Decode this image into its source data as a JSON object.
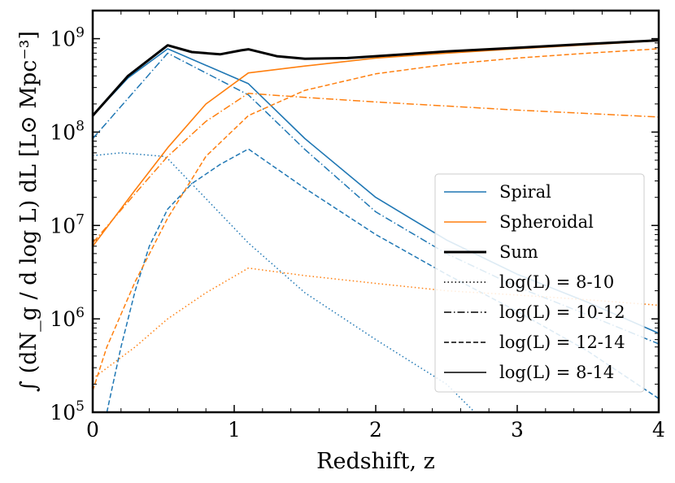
{
  "chart_data": {
    "type": "line",
    "title": "",
    "xlabel": "Redshift, z",
    "ylabel": "∫ (dN_g / d log L) dL [L⊙ Mpc⁻³]",
    "y_scale": "log",
    "xlim": [
      0,
      4
    ],
    "ylim": [
      100000,
      2000000000
    ],
    "x_ticks": [
      0,
      1,
      2,
      3,
      4
    ],
    "x_tick_labels": [
      "0",
      "1",
      "2",
      "3",
      "4"
    ],
    "y_ticks": [
      100000,
      1000000,
      10000000,
      100000000,
      1000000000
    ],
    "y_tick_labels": [
      "10",
      "10",
      "10",
      "10",
      "10"
    ],
    "y_tick_exponents": [
      "5",
      "6",
      "7",
      "8",
      "9"
    ],
    "grid": false,
    "legend_position": "lower-right",
    "colors": {
      "spiral": "#1f77b4",
      "spheroidal": "#ff7f0e",
      "sum": "#000000"
    },
    "legend": [
      {
        "label": "Spiral",
        "kind": "color",
        "color": "#1f77b4",
        "dash": "solid",
        "width": 1.6
      },
      {
        "label": "Spheroidal",
        "kind": "color",
        "color": "#ff7f0e",
        "dash": "solid",
        "width": 1.6
      },
      {
        "label": "Sum",
        "kind": "color",
        "color": "#000000",
        "dash": "solid",
        "width": 3
      },
      {
        "label": "log(L) = 8-10",
        "kind": "style",
        "color": "#000000",
        "dash": "dotted",
        "width": 1.4
      },
      {
        "label": "log(L) = 10-12",
        "kind": "style",
        "color": "#000000",
        "dash": "dashdot",
        "width": 1.4
      },
      {
        "label": "log(L) = 12-14",
        "kind": "style",
        "color": "#000000",
        "dash": "dashed",
        "width": 1.4
      },
      {
        "label": "log(L) = 8-14",
        "kind": "style",
        "color": "#000000",
        "dash": "solid",
        "width": 1.4
      }
    ],
    "series": [
      {
        "name": "Spiral, log(L) = 8-10",
        "color": "#1f77b4",
        "dash": "dotted",
        "width": 1.5,
        "x": [
          0,
          0.2,
          0.5,
          0.53,
          1.1,
          1.5,
          2.0,
          2.5,
          2.7
        ],
        "y": [
          56000000,
          60000000,
          55000000,
          52000000,
          6500000,
          1900000,
          600000,
          200000,
          100000
        ]
      },
      {
        "name": "Spiral, log(L) = 10-12",
        "color": "#1f77b4",
        "dash": "dashdot",
        "width": 1.5,
        "x": [
          0,
          0.53,
          1.1,
          1.5,
          2.0,
          2.5,
          3.0,
          3.5,
          4.0
        ],
        "y": [
          85000000,
          700000000,
          250000000,
          65000000,
          14000000,
          5000000,
          2200000,
          1100000,
          540000
        ]
      },
      {
        "name": "Spiral, log(L) = 12-14",
        "color": "#1f77b4",
        "dash": "dashed",
        "width": 1.5,
        "x": [
          0.1,
          0.2,
          0.3,
          0.4,
          0.53,
          0.7,
          0.9,
          1.1,
          1.5,
          2.0,
          2.5,
          3.0,
          3.5,
          4.0
        ],
        "y": [
          100000,
          500000,
          2000000,
          6000000,
          15000000,
          28000000,
          45000000,
          66000000,
          25000000,
          8000000,
          3000000,
          1200000,
          450000,
          140000
        ]
      },
      {
        "name": "Spiral, log(L) = 8-14",
        "color": "#1f77b4",
        "dash": "solid",
        "width": 1.6,
        "x": [
          0,
          0.25,
          0.53,
          1.1,
          1.5,
          2.0,
          2.5,
          3.0,
          3.5,
          4.0
        ],
        "y": [
          150000000,
          380000000,
          780000000,
          330000000,
          85000000,
          20000000,
          7000000,
          3000000,
          1500000,
          700000
        ]
      },
      {
        "name": "Spheroidal, log(L) = 8-10",
        "color": "#ff7f0e",
        "dash": "dotted",
        "width": 1.5,
        "x": [
          0,
          0.3,
          0.53,
          0.8,
          1.1,
          1.5,
          2.0,
          2.5,
          3.0,
          3.5,
          4.0
        ],
        "y": [
          230000,
          500000,
          1000000,
          1900000,
          3500000,
          2900000,
          2400000,
          2000000,
          1800000,
          1600000,
          1400000
        ]
      },
      {
        "name": "Spheroidal, log(L) = 10-12",
        "color": "#ff7f0e",
        "dash": "dashdot",
        "width": 1.5,
        "x": [
          0,
          0.3,
          0.53,
          0.8,
          1.1,
          1.5,
          2.0,
          2.5,
          3.0,
          3.5,
          4.0
        ],
        "y": [
          6500000,
          22000000,
          55000000,
          130000000,
          260000000,
          235000000,
          210000000,
          190000000,
          172000000,
          158000000,
          145000000
        ]
      },
      {
        "name": "Spheroidal, log(L) = 12-14",
        "color": "#ff7f0e",
        "dash": "dashed",
        "width": 1.5,
        "x": [
          0,
          0.1,
          0.3,
          0.53,
          0.8,
          1.1,
          1.5,
          2.0,
          2.5,
          3.0,
          3.5,
          4.0
        ],
        "y": [
          170000,
          500000,
          2500000,
          12000000,
          55000000,
          150000000,
          280000000,
          420000000,
          530000000,
          620000000,
          700000000,
          780000000
        ]
      },
      {
        "name": "Spheroidal, log(L) = 8-14",
        "color": "#ff7f0e",
        "dash": "solid",
        "width": 1.6,
        "x": [
          0,
          0.3,
          0.53,
          0.8,
          1.1,
          1.5,
          2.0,
          2.5,
          3.0,
          3.5,
          4.0
        ],
        "y": [
          6000000,
          24000000,
          68000000,
          200000000,
          430000000,
          510000000,
          620000000,
          700000000,
          780000000,
          860000000,
          950000000
        ]
      },
      {
        "name": "Sum, log(L) = 8-14",
        "color": "#000000",
        "dash": "solid",
        "width": 3,
        "x": [
          0,
          0.25,
          0.53,
          0.7,
          0.9,
          1.05,
          1.1,
          1.3,
          1.5,
          1.8,
          2.0,
          2.5,
          3.0,
          3.5,
          4.0
        ],
        "y": [
          150000000,
          400000000,
          850000000,
          720000000,
          680000000,
          750000000,
          770000000,
          650000000,
          610000000,
          620000000,
          650000000,
          730000000,
          800000000,
          880000000,
          960000000
        ]
      }
    ]
  }
}
